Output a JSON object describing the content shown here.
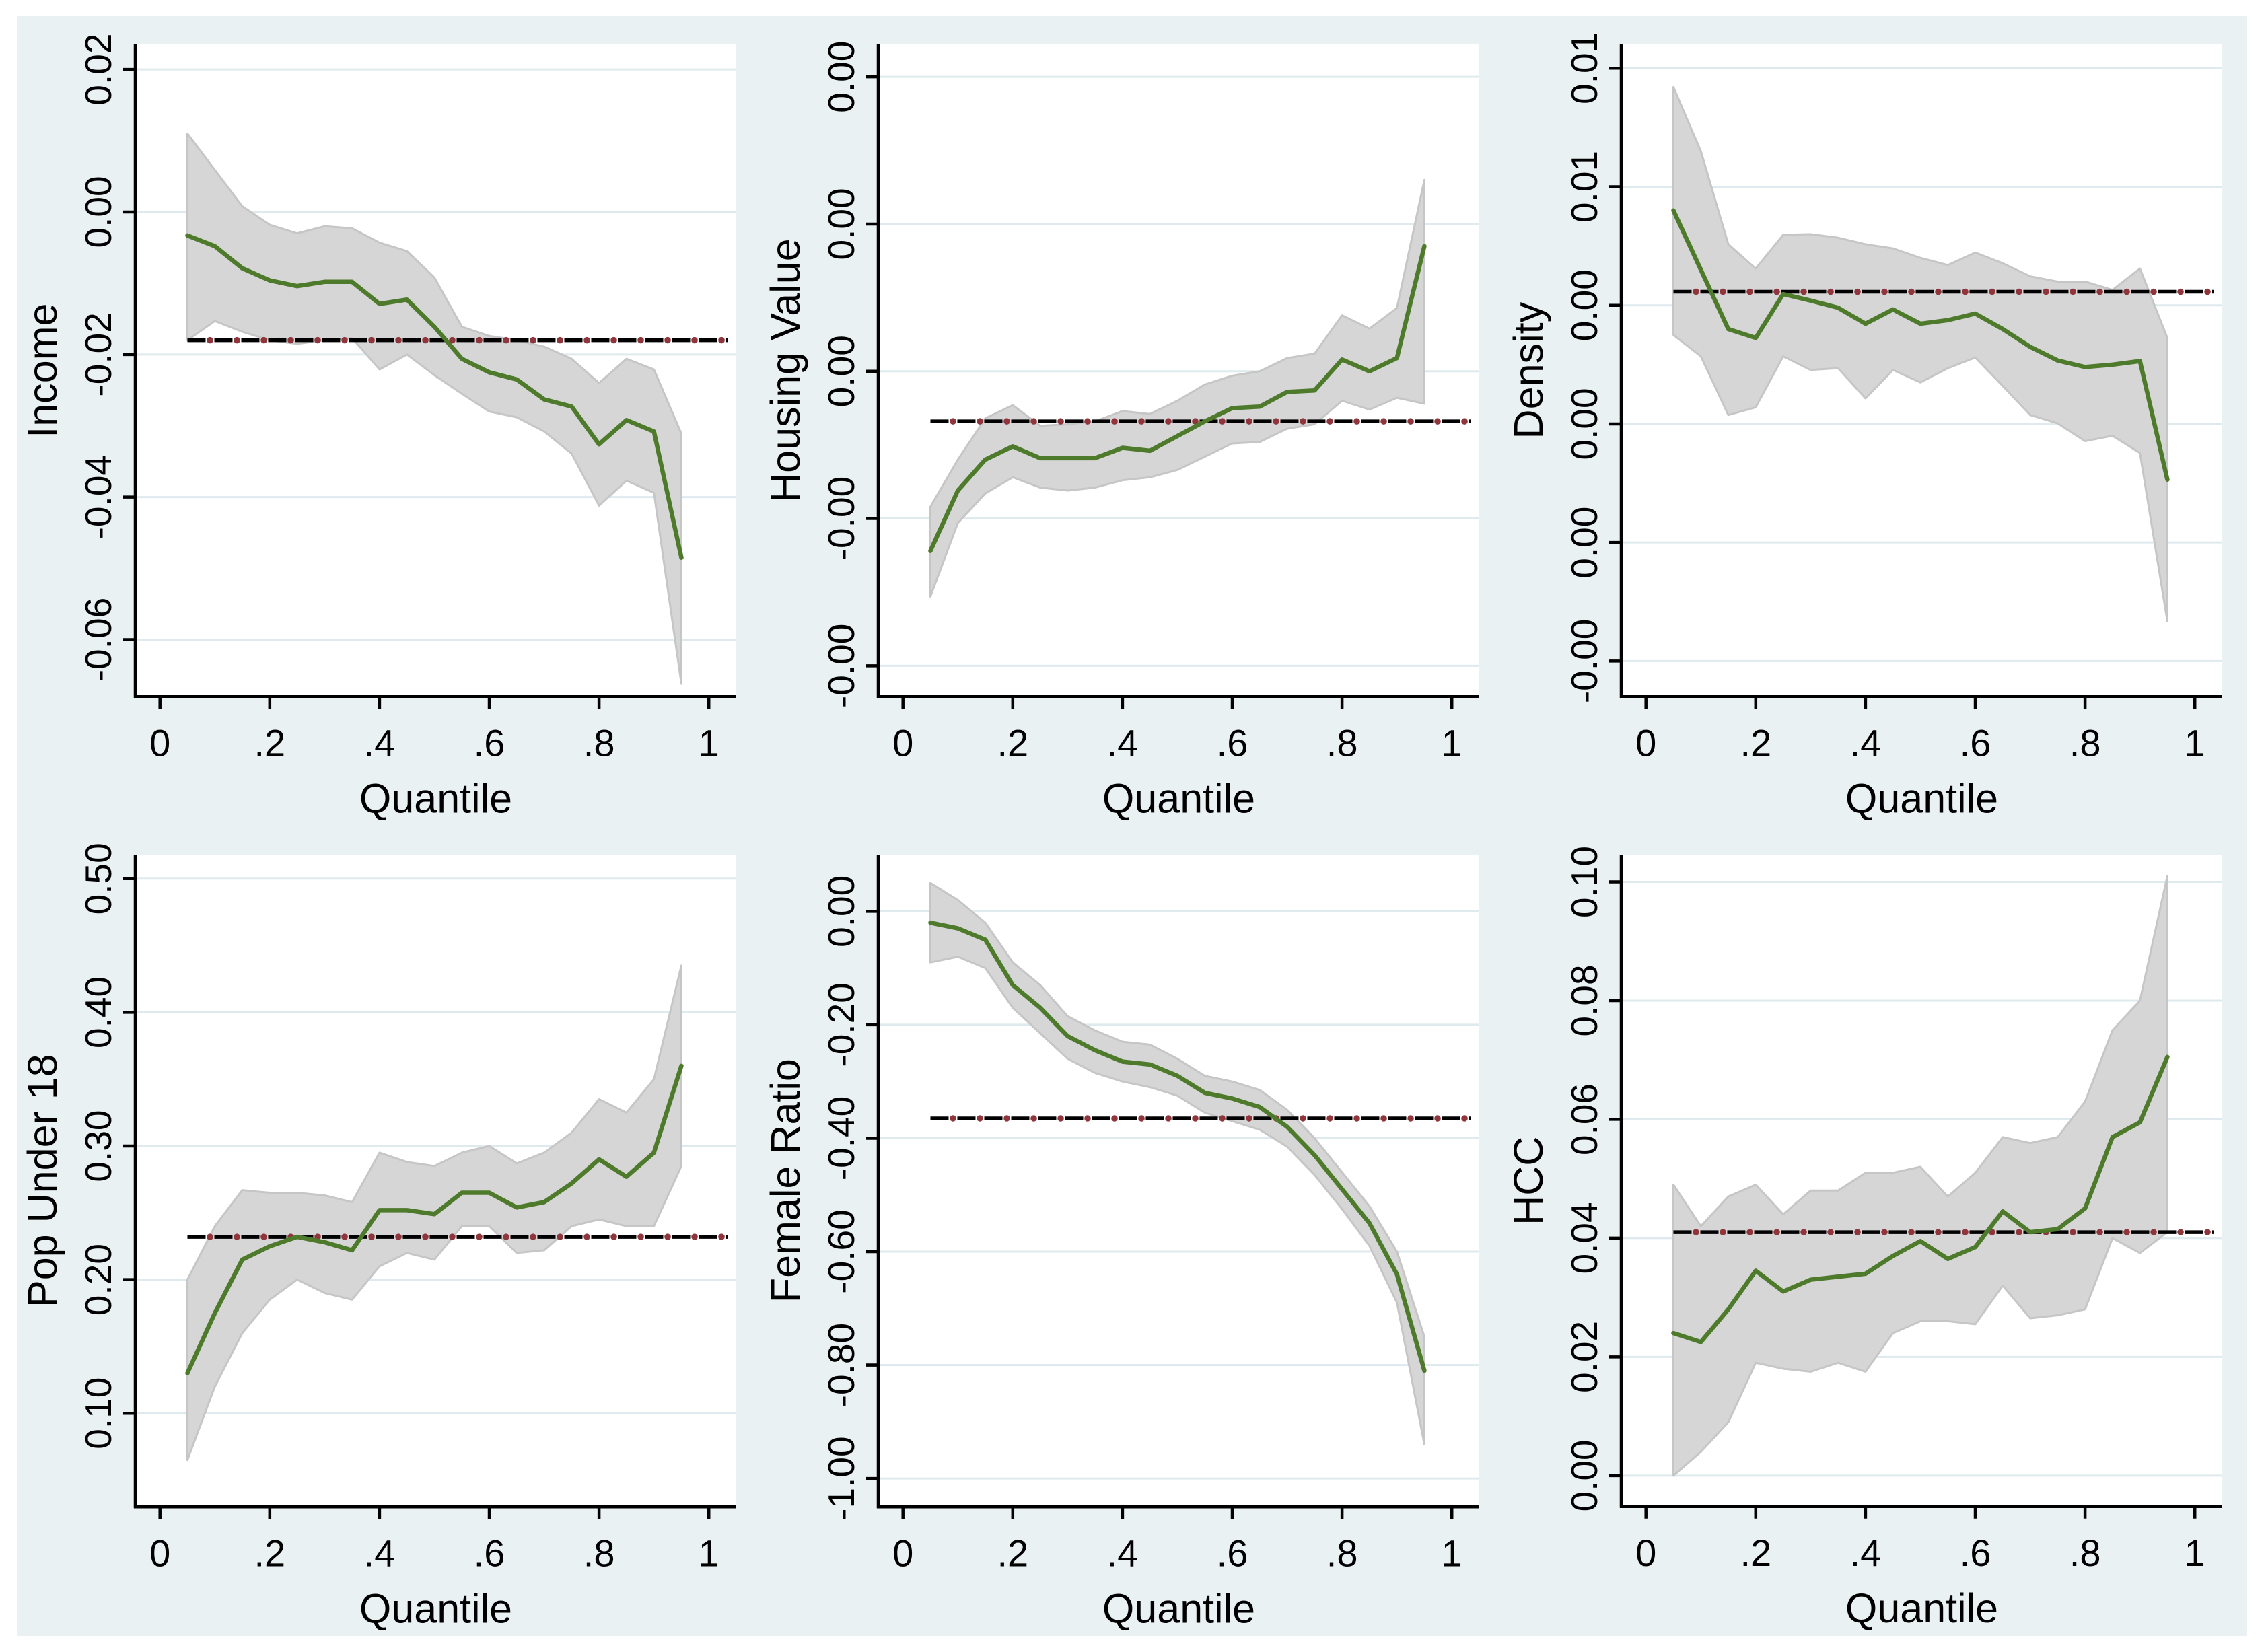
{
  "figure": {
    "background": "#eaf1f2",
    "page_background": "#ffffff",
    "colors": {
      "plot_bg": "#ffffff",
      "grid": "#dfeaee",
      "axis": "#000000",
      "text": "#000000",
      "estimate_line": "#4e7a2b",
      "band_fill": "#d6d6d6",
      "band_edge": "#c6c6c6",
      "reference_dash": "#000000",
      "reference_dot": "#90353b"
    }
  },
  "chart_data": {
    "type": "line",
    "subtype": "quantile-treatment-effects-with-ci-band-and-reference-line",
    "xlabel": "Quantile",
    "x": [
      0.05,
      0.1,
      0.15,
      0.2,
      0.25,
      0.3,
      0.35,
      0.4,
      0.45,
      0.5,
      0.55,
      0.6,
      0.65,
      0.7,
      0.75,
      0.8,
      0.85,
      0.9,
      0.95
    ],
    "xlim": [
      -0.045,
      1.05
    ],
    "xticks": {
      "values": [
        0,
        0.2,
        0.4,
        0.6,
        0.8,
        1
      ],
      "labels": [
        "0",
        ".2",
        ".4",
        ".6",
        ".8",
        "1"
      ]
    },
    "reference_x_extent": [
      0.05,
      1.035
    ],
    "grid": true,
    "legend": "none",
    "panels": [
      {
        "id": "income",
        "ylabel": "Income",
        "ylim": [
          0.0235,
          -0.068
        ],
        "yticks": {
          "values": [
            0.02,
            0,
            -0.02,
            -0.04,
            -0.06
          ],
          "labels": [
            "0.02",
            "0.00",
            "-0.02",
            "-0.04",
            "-0.06"
          ]
        },
        "reference_value": -0.018,
        "estimate": [
          -0.0033,
          -0.0048,
          -0.0079,
          -0.0096,
          -0.0104,
          -0.0098,
          -0.0098,
          -0.0129,
          -0.0123,
          -0.0161,
          -0.0206,
          -0.0225,
          -0.0235,
          -0.0263,
          -0.0273,
          -0.0326,
          -0.0292,
          -0.0308,
          -0.0485
        ],
        "ci_upper": [
          0.011,
          0.0059,
          0.0008,
          -0.0018,
          -0.003,
          -0.002,
          -0.0023,
          -0.0043,
          -0.0055,
          -0.0092,
          -0.0161,
          -0.0174,
          -0.018,
          -0.0189,
          -0.0206,
          -0.024,
          -0.0206,
          -0.0221,
          -0.0311
        ],
        "ci_lower": [
          -0.018,
          -0.0153,
          -0.0168,
          -0.018,
          -0.0185,
          -0.018,
          -0.0177,
          -0.0221,
          -0.02,
          -0.0229,
          -0.0255,
          -0.028,
          -0.0288,
          -0.0308,
          -0.0339,
          -0.0412,
          -0.0377,
          -0.0394,
          -0.0662
        ]
      },
      {
        "id": "housing-value",
        "ylabel": "Housing Value",
        "ylim": [
          0.00222,
          -0.00221
        ],
        "yticks": {
          "values": [
            0.002,
            0.001,
            0,
            -0.001,
            -0.002
          ],
          "labels": [
            "0.00",
            "0.00",
            "0.00",
            "-0.00",
            "-0.00"
          ]
        },
        "reference_value": -0.00034,
        "estimate": [
          -0.00122,
          -0.00081,
          -0.0006,
          -0.00051,
          -0.00059,
          -0.00059,
          -0.00059,
          -0.00052,
          -0.00054,
          -0.00044,
          -0.00034,
          -0.00025,
          -0.00024,
          -0.00014,
          -0.00013,
          8e-05,
          0,
          9e-05,
          0.00085
        ],
        "ci_upper": [
          -0.00092,
          -0.0006,
          -0.00032,
          -0.00023,
          -0.00037,
          -0.00036,
          -0.00034,
          -0.00027,
          -0.00029,
          -0.0002,
          -9e-05,
          -3e-05,
          0,
          9e-05,
          0.00012,
          0.00038,
          0.00029,
          0.00043,
          0.0013
        ],
        "ci_lower": [
          -0.00153,
          -0.00103,
          -0.00083,
          -0.00072,
          -0.00079,
          -0.00081,
          -0.00079,
          -0.00074,
          -0.00072,
          -0.00067,
          -0.00058,
          -0.00049,
          -0.00048,
          -0.00039,
          -0.00036,
          -0.0002,
          -0.00026,
          -0.00018,
          -0.00022
        ]
      },
      {
        "id": "density",
        "ylabel": "Density",
        "ylim": [
          0.0084,
          -0.0026
        ],
        "yticks": {
          "values": [
            0.008,
            0.006,
            0.004,
            0.002,
            0,
            -0.002
          ],
          "labels": [
            "0.01",
            "0.01",
            "0.00",
            "0.00",
            "0.00",
            "-0.00"
          ]
        },
        "reference_value": 0.00423,
        "estimate": [
          0.0056,
          0.0046,
          0.0036,
          0.00345,
          0.00419,
          0.00408,
          0.00396,
          0.00369,
          0.00393,
          0.00369,
          0.00375,
          0.00386,
          0.0036,
          0.0033,
          0.00307,
          0.00296,
          0.003,
          0.00306,
          0.00106
        ],
        "ci_upper": [
          0.00768,
          0.0066,
          0.00503,
          0.00462,
          0.00519,
          0.0052,
          0.00514,
          0.00503,
          0.00496,
          0.0048,
          0.00468,
          0.00489,
          0.00471,
          0.00449,
          0.0044,
          0.0044,
          0.00426,
          0.00462,
          0.00345
        ],
        "ci_lower": [
          0.0035,
          0.00314,
          0.00215,
          0.00228,
          0.00314,
          0.00291,
          0.00294,
          0.00243,
          0.00291,
          0.0027,
          0.00294,
          0.00312,
          0.00264,
          0.00215,
          0.00201,
          0.00171,
          0.0018,
          0.00151,
          -0.00133
        ]
      },
      {
        "id": "pop-under-18",
        "ylabel": "Pop Under 18",
        "ylim": [
          0.518,
          0.03
        ],
        "yticks": {
          "values": [
            0.5,
            0.4,
            0.3,
            0.2,
            0.1
          ],
          "labels": [
            "0.50",
            "0.40",
            "0.30",
            "0.20",
            "0.10"
          ]
        },
        "reference_value": 0.232,
        "estimate": [
          0.13,
          0.175,
          0.215,
          0.225,
          0.232,
          0.228,
          0.222,
          0.252,
          0.252,
          0.249,
          0.265,
          0.265,
          0.254,
          0.258,
          0.272,
          0.29,
          0.277,
          0.295,
          0.36
        ],
        "ci_upper": [
          0.2,
          0.24,
          0.267,
          0.265,
          0.265,
          0.263,
          0.258,
          0.295,
          0.288,
          0.285,
          0.295,
          0.3,
          0.287,
          0.295,
          0.31,
          0.335,
          0.325,
          0.35,
          0.435
        ],
        "ci_lower": [
          0.065,
          0.12,
          0.16,
          0.185,
          0.2,
          0.19,
          0.185,
          0.21,
          0.22,
          0.215,
          0.24,
          0.24,
          0.22,
          0.222,
          0.24,
          0.245,
          0.24,
          0.24,
          0.285
        ]
      },
      {
        "id": "female-ratio",
        "ylabel": "Female Ratio",
        "ylim": [
          0.1,
          -1.05
        ],
        "yticks": {
          "values": [
            0,
            -0.2,
            -0.4,
            -0.6,
            -0.8,
            -1
          ],
          "labels": [
            "0.00",
            "-0.20",
            "-0.40",
            "-0.60",
            "-0.80",
            "-1.00"
          ]
        },
        "reference_value": -0.365,
        "estimate": [
          -0.02,
          -0.03,
          -0.05,
          -0.13,
          -0.17,
          -0.22,
          -0.245,
          -0.265,
          -0.27,
          -0.29,
          -0.32,
          -0.33,
          -0.345,
          -0.38,
          -0.43,
          -0.49,
          -0.55,
          -0.64,
          -0.81
        ],
        "ci_upper": [
          0.05,
          0.02,
          -0.02,
          -0.09,
          -0.13,
          -0.185,
          -0.21,
          -0.23,
          -0.235,
          -0.26,
          -0.29,
          -0.3,
          -0.315,
          -0.35,
          -0.4,
          -0.46,
          -0.52,
          -0.6,
          -0.75
        ],
        "ci_lower": [
          -0.09,
          -0.08,
          -0.1,
          -0.17,
          -0.215,
          -0.26,
          -0.285,
          -0.3,
          -0.31,
          -0.325,
          -0.355,
          -0.37,
          -0.385,
          -0.415,
          -0.465,
          -0.525,
          -0.59,
          -0.69,
          -0.94
        ]
      },
      {
        "id": "hcc",
        "ylabel": "HCC",
        "ylim": [
          0.1045,
          -0.0052
        ],
        "yticks": {
          "values": [
            0.1,
            0.08,
            0.06,
            0.04,
            0.02,
            0
          ],
          "labels": [
            "0.10",
            "0.08",
            "0.06",
            "0.04",
            "0.02",
            "0.00"
          ]
        },
        "reference_value": 0.041,
        "estimate": [
          0.024,
          0.0225,
          0.028,
          0.0345,
          0.031,
          0.033,
          0.0335,
          0.034,
          0.037,
          0.0395,
          0.0365,
          0.0385,
          0.0445,
          0.041,
          0.0415,
          0.045,
          0.057,
          0.0595,
          0.0705
        ],
        "ci_upper": [
          0.049,
          0.042,
          0.047,
          0.049,
          0.044,
          0.048,
          0.048,
          0.051,
          0.051,
          0.052,
          0.047,
          0.051,
          0.057,
          0.056,
          0.057,
          0.063,
          0.075,
          0.08,
          0.101
        ],
        "ci_lower": [
          0,
          0.004,
          0.009,
          0.019,
          0.018,
          0.0175,
          0.019,
          0.0175,
          0.024,
          0.026,
          0.026,
          0.0255,
          0.032,
          0.0265,
          0.027,
          0.028,
          0.04,
          0.0375,
          0.041
        ]
      }
    ]
  }
}
